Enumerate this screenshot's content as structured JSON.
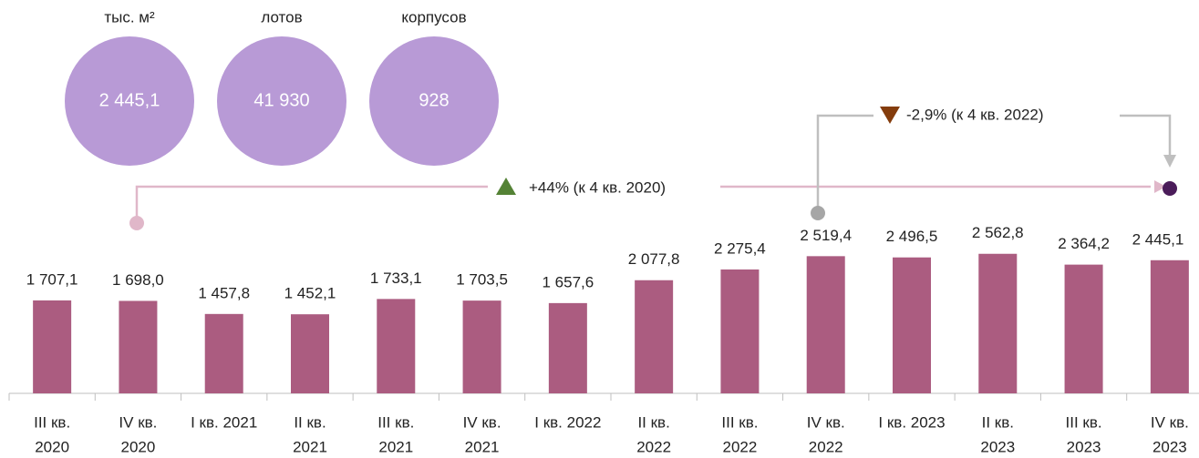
{
  "summary": [
    {
      "unit": "тыс. м²",
      "value": "2 445,1"
    },
    {
      "unit": "лотов",
      "value": "41 930"
    },
    {
      "unit": "корпусов",
      "value": "928"
    }
  ],
  "chart_data": {
    "type": "bar",
    "categories": [
      [
        "III кв.",
        "2020"
      ],
      [
        "IV кв.",
        "2020"
      ],
      [
        "I кв. 2021"
      ],
      [
        "II кв.",
        "2021"
      ],
      [
        "III кв.",
        "2021"
      ],
      [
        "IV кв.",
        "2021"
      ],
      [
        "I кв. 2022"
      ],
      [
        "II кв.",
        "2022"
      ],
      [
        "III кв.",
        "2022"
      ],
      [
        "IV кв.",
        "2022"
      ],
      [
        "I кв. 2023"
      ],
      [
        "II кв.",
        "2023"
      ],
      [
        "III кв.",
        "2023"
      ],
      [
        "IV кв.",
        "2023"
      ]
    ],
    "values": [
      1707.1,
      1698.0,
      1457.8,
      1452.1,
      1733.1,
      1703.5,
      1657.6,
      2077.8,
      2275.4,
      2519.4,
      2496.5,
      2562.8,
      2364.2,
      2445.1
    ],
    "value_labels": [
      "1 707,1",
      "1 698,0",
      "1 457,8",
      "1 452,1",
      "1 733,1",
      "1 703,5",
      "1 657,6",
      "2 077,8",
      "2 275,4",
      "2 519,4",
      "2 496,5",
      "2 562,8",
      "2 364,2",
      "2 445,1"
    ],
    "color": "#ab5c80",
    "ylim": [
      0,
      7000
    ],
    "annotations": [
      "+44% (к 4 кв. 2020)",
      "-2,9% (к 4 кв. 2022)"
    ]
  }
}
